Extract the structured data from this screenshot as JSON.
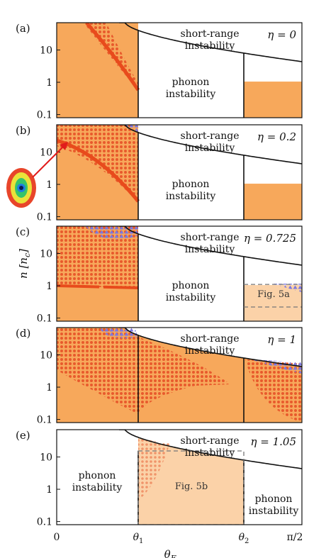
{
  "figure": {
    "y_axis_label": "n [n_c]",
    "x_axis_label": "θ_F",
    "x_tick_labels": [
      "0",
      "θ1",
      "θ2",
      "π/2"
    ],
    "y_tick_labels": [
      "0.1",
      "1",
      "10"
    ],
    "colors": {
      "stable_fill": "#f7a85b",
      "light_fill": "#fbd2a8",
      "dot": "#e85a2c",
      "dense_mark": "#e84b1c",
      "triangle": "#7b78e0",
      "boundary": "#111111",
      "dash": "#777777"
    }
  },
  "panels": [
    {
      "label": "(a)",
      "eta": "η = 0",
      "short_range": [
        "short-range",
        "instability"
      ],
      "phonon": [
        "phonon",
        "instability"
      ]
    },
    {
      "label": "(b)",
      "eta": "η = 0.2",
      "short_range": [
        "short-range",
        "instability"
      ],
      "phonon": [
        "phonon",
        "instability"
      ]
    },
    {
      "label": "(c)",
      "eta": "η = 0.725",
      "short_range": [
        "short-range",
        "instability"
      ],
      "phonon": [
        "phonon",
        "instability"
      ],
      "figref": "Fig. 5a"
    },
    {
      "label": "(d)",
      "eta": "η = 1",
      "short_range": [
        "short-range",
        "instability"
      ]
    },
    {
      "label": "(e)",
      "eta": "η = 1.05",
      "short_range": [
        "short-range",
        "instability"
      ],
      "phonon_left": [
        "phonon",
        "instability"
      ],
      "phonon_right": [
        "phonon",
        "instability"
      ],
      "figref": "Fig. 5b"
    }
  ],
  "chart_data": {
    "type": "area",
    "xlabel": "θ_F",
    "ylabel": "n [n_c]",
    "y_scale": "log",
    "ylim": [
      0.08,
      70
    ],
    "x_ticks": [
      "0",
      "θ1",
      "θ2",
      "π/2"
    ],
    "y_ticks": [
      0.1,
      1,
      10
    ],
    "grid": false,
    "panels": [
      {
        "label": "(a)",
        "eta": 0
      },
      {
        "label": "(b)",
        "eta": 0.2
      },
      {
        "label": "(c)",
        "eta": 0.725
      },
      {
        "label": "(d)",
        "eta": 1
      },
      {
        "label": "(e)",
        "eta": 1.05
      }
    ]
  }
}
